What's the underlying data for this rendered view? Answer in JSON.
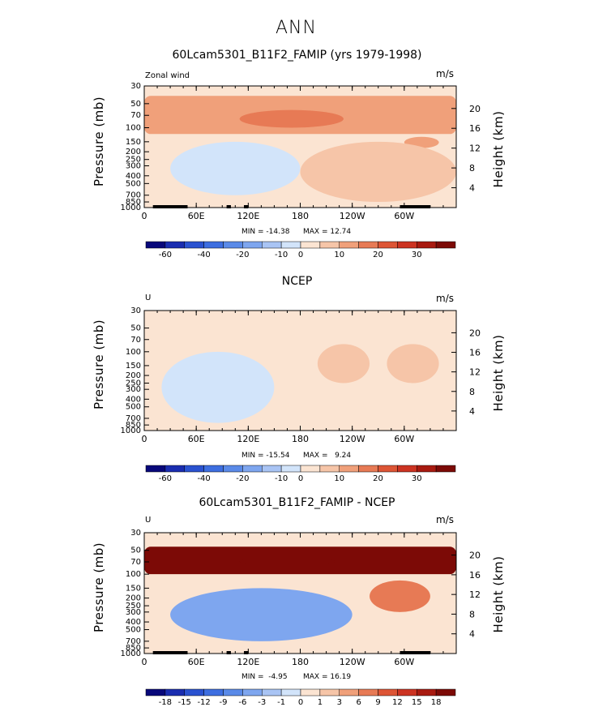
{
  "figure": {
    "season": "ANN",
    "units_label": "m/s",
    "y_left_label": "Pressure (mb)",
    "y_right_label": "Height (km)",
    "pressure_ticks": [
      "30",
      "50",
      "70",
      "100",
      "150",
      "200",
      "250",
      "300",
      "400",
      "500",
      "700",
      "850",
      "1000"
    ],
    "height_ticks": [
      "20",
      "16",
      "12",
      "8",
      "4"
    ],
    "lon_ticks": [
      "0",
      "60E",
      "120E",
      "180",
      "120W",
      "60W"
    ]
  },
  "chart_data": [
    {
      "type": "heatmap",
      "title": "60Lcam5301_B11F2_FAMIP (yrs 1979-1998)",
      "corner_label": "Zonal wind",
      "units": "m/s",
      "xlabel": "",
      "ylabel": "Pressure (mb)",
      "y2label": "Height (km)",
      "x_range": [
        0,
        360
      ],
      "y_range_mb": [
        1000,
        30
      ],
      "min_label": "MIN = -14.38",
      "max_label": "MAX = 12.74",
      "min": -14.38,
      "max": 12.74,
      "colorbar_ticks": [
        "-60",
        "-40",
        "-20",
        "-10",
        "0",
        "10",
        "20",
        "30"
      ],
      "levels": [
        -70,
        -60,
        -50,
        -40,
        -30,
        -20,
        -15,
        -10,
        -5,
        0,
        5,
        10,
        15,
        20,
        25,
        30,
        35
      ],
      "colors": [
        "#08087a",
        "#1a2db0",
        "#2a52d0",
        "#3d6ee0",
        "#5a8ae8",
        "#7ea6ef",
        "#a9c4f4",
        "#d2e4fa",
        "#fbe4d2",
        "#f6c5a8",
        "#f0a07a",
        "#e77a55",
        "#dd5535",
        "#cc3322",
        "#a81a10",
        "#7c0a06"
      ],
      "regions": [
        {
          "level": 2,
          "shape": "band_upper",
          "lon": [
            0,
            360
          ],
          "p": [
            40,
            120
          ]
        },
        {
          "level": 3,
          "shape": "jet_core",
          "lon": [
            110,
            230
          ],
          "p": [
            60,
            100
          ]
        },
        {
          "level": 2,
          "shape": "subtropical_max",
          "lon": [
            300,
            340
          ],
          "p": [
            130,
            180
          ]
        },
        {
          "level": -1,
          "shape": "easterly",
          "lon": [
            30,
            180
          ],
          "p": [
            150,
            700
          ]
        },
        {
          "level": 1,
          "shape": "westerly_lower",
          "lon": [
            180,
            360
          ],
          "p": [
            150,
            850
          ]
        }
      ],
      "topography": true
    },
    {
      "type": "heatmap",
      "title": "NCEP",
      "corner_label": "U",
      "units": "m/s",
      "xlabel": "",
      "ylabel": "Pressure (mb)",
      "y2label": "Height (km)",
      "x_range": [
        0,
        360
      ],
      "y_range_mb": [
        1000,
        30
      ],
      "min_label": "MIN = -15.54",
      "max_label": "MAX =   9.24",
      "min": -15.54,
      "max": 9.24,
      "colorbar_ticks": [
        "-60",
        "-40",
        "-20",
        "-10",
        "0",
        "10",
        "20",
        "30"
      ],
      "levels": [
        -70,
        -60,
        -50,
        -40,
        -30,
        -20,
        -15,
        -10,
        -5,
        0,
        5,
        10,
        15,
        20,
        25,
        30,
        35
      ],
      "colors": [
        "#08087a",
        "#1a2db0",
        "#2a52d0",
        "#3d6ee0",
        "#5a8ae8",
        "#7ea6ef",
        "#a9c4f4",
        "#d2e4fa",
        "#fbe4d2",
        "#f6c5a8",
        "#f0a07a",
        "#e77a55",
        "#dd5535",
        "#cc3322",
        "#a81a10",
        "#7c0a06"
      ],
      "regions": [
        {
          "level": -1,
          "shape": "easterly",
          "lon": [
            20,
            150
          ],
          "p": [
            100,
            800
          ]
        },
        {
          "level": 1,
          "shape": "westerly_east",
          "lon": [
            200,
            260
          ],
          "p": [
            80,
            250
          ]
        },
        {
          "level": 1,
          "shape": "westerly_west",
          "lon": [
            280,
            340
          ],
          "p": [
            80,
            250
          ]
        }
      ],
      "topography": false
    },
    {
      "type": "heatmap",
      "title": "60Lcam5301_B11F2_FAMIP - NCEP",
      "corner_label": "U",
      "units": "m/s",
      "xlabel": "",
      "ylabel": "Pressure (mb)",
      "y2label": "Height (km)",
      "x_range": [
        0,
        360
      ],
      "y_range_mb": [
        1000,
        30
      ],
      "min_label": "MIN =  -4.95",
      "max_label": "MAX = 16.19",
      "min": -4.95,
      "max": 16.19,
      "colorbar_ticks": [
        "-18",
        "-15",
        "-12",
        "-9",
        "-6",
        "-3",
        "-1",
        "0",
        "1",
        "3",
        "6",
        "9",
        "12",
        "15",
        "18"
      ],
      "levels": [
        -21,
        -18,
        -15,
        -12,
        -9,
        -6,
        -3,
        -1,
        0,
        1,
        3,
        6,
        9,
        12,
        15,
        18,
        21
      ],
      "colors": [
        "#08087a",
        "#1a2db0",
        "#2a52d0",
        "#3d6ee0",
        "#5a8ae8",
        "#7ea6ef",
        "#a9c4f4",
        "#d2e4fa",
        "#fbe4d2",
        "#f6c5a8",
        "#f0a07a",
        "#e77a55",
        "#dd5535",
        "#cc3322",
        "#a81a10",
        "#7c0a06"
      ],
      "regions": [
        {
          "level": 12,
          "shape": "band_upper",
          "lon": [
            0,
            360
          ],
          "p": [
            45,
            100
          ]
        },
        {
          "level": 15,
          "shape": "jet_core",
          "lon": [
            110,
            220
          ],
          "p": [
            60,
            80
          ]
        },
        {
          "level": -3,
          "shape": "negative_mid",
          "lon": [
            30,
            240
          ],
          "p": [
            150,
            700
          ]
        },
        {
          "level": 3,
          "shape": "positive_mid",
          "lon": [
            260,
            330
          ],
          "p": [
            120,
            300
          ]
        }
      ],
      "topography": true
    }
  ]
}
